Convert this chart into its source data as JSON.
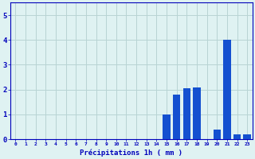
{
  "hours": [
    0,
    1,
    2,
    3,
    4,
    5,
    6,
    7,
    8,
    9,
    10,
    11,
    12,
    13,
    14,
    15,
    16,
    17,
    18,
    19,
    20,
    21,
    22,
    23
  ],
  "values": [
    0,
    0,
    0,
    0,
    0,
    0,
    0,
    0,
    0,
    0,
    0,
    0,
    0,
    0,
    0,
    1.0,
    1.8,
    2.05,
    2.1,
    0,
    0.4,
    4.0,
    0.2,
    0.2
  ],
  "bar_color": "#1450d0",
  "background_color": "#dff2f2",
  "grid_color": "#b8d4d4",
  "tick_color": "#0000bb",
  "label_color": "#0000bb",
  "xlabel": "Précipitations 1h ( mm )",
  "ylim": [
    0,
    5.5
  ],
  "yticks": [
    0,
    1,
    2,
    3,
    4,
    5
  ],
  "xlim": [
    -0.5,
    23.5
  ]
}
